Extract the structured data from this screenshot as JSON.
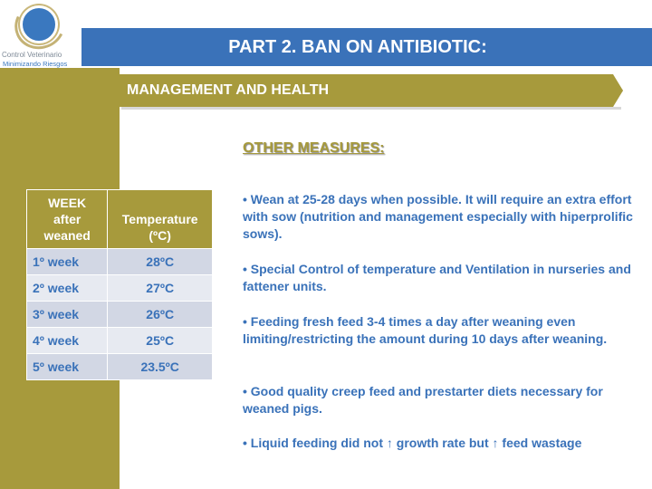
{
  "logo": {
    "line1": "Control Veterinario",
    "line2": "Minimizando Riesgos"
  },
  "header": {
    "title": "PART 2. BAN ON ANTIBIOTIC:",
    "subtitle": "MANAGEMENT AND HEALTH"
  },
  "table": {
    "col1_header_lines": [
      "WEEK",
      "after",
      "weaned"
    ],
    "col2_header_lines": [
      "Temperature",
      "(ºC)"
    ],
    "rows": [
      {
        "week": "1º week",
        "temp": "28ºC"
      },
      {
        "week": "2º week",
        "temp": "27ºC"
      },
      {
        "week": "3º week",
        "temp": "26ºC"
      },
      {
        "week": "4º week",
        "temp": "25ºC"
      },
      {
        "week": "5º week",
        "temp": "23.5ºC"
      }
    ]
  },
  "measures": {
    "title": "OTHER MEASURES:",
    "bullets": [
      "• Wean at 25-28 days when possible. It will require an extra effort with sow (nutrition and management especially with hiperprolific sows).",
      "• Special Control of temperature and Ventilation in nurseries and fattener units.",
      "• Feeding fresh feed 3-4 times a day after weaning even limiting/restricting the amount during 10 days  after weaning.",
      "• Good quality creep feed and prestarter diets necessary for weaned pigs.",
      "• Liquid feeding did not ↑ growth rate but ↑ feed wastage"
    ]
  },
  "colors": {
    "olive": "#a79a3c",
    "blue": "#3a72b9",
    "row_dark": "#d2d7e4",
    "row_light": "#e7eaf1"
  }
}
